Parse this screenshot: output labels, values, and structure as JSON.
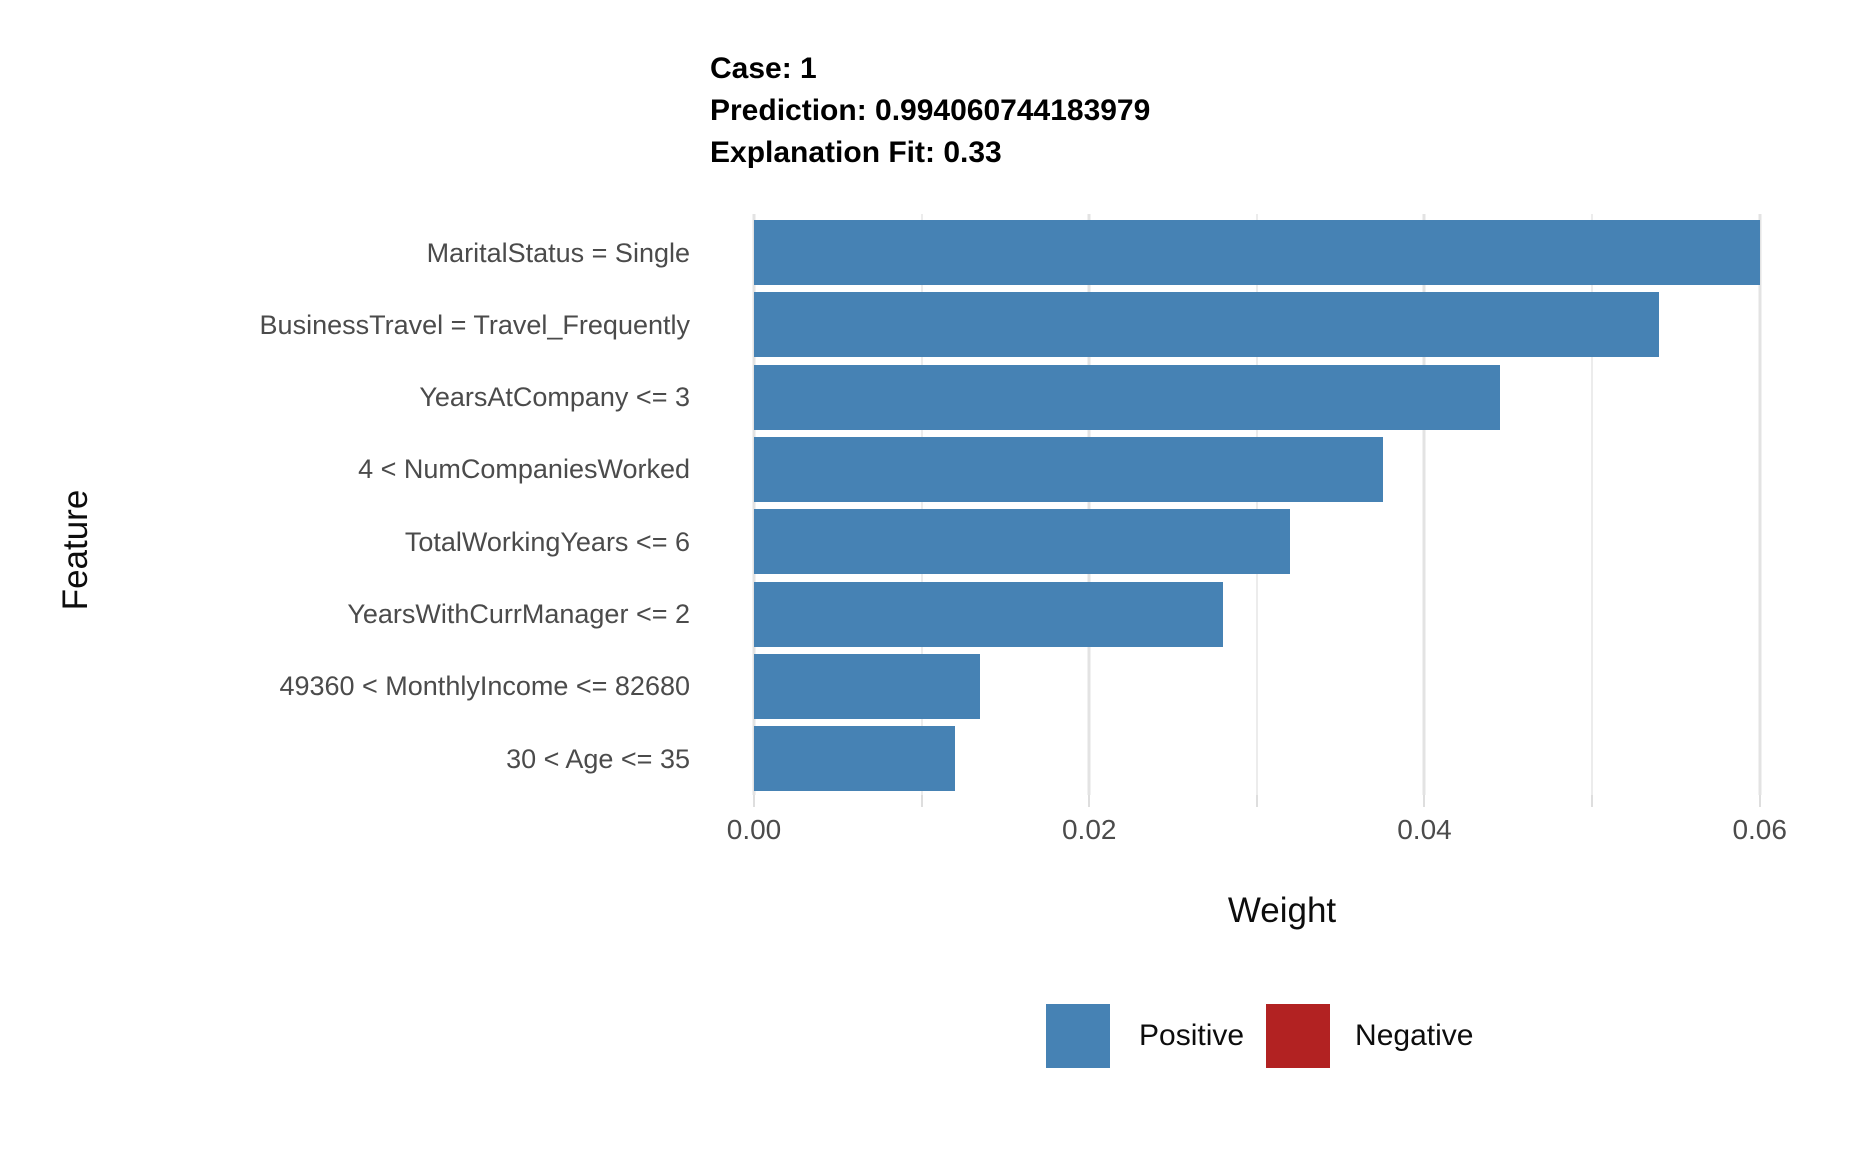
{
  "chart_data": {
    "type": "bar",
    "orientation": "horizontal",
    "title_lines": [
      "Case: 1",
      "Prediction: 0.994060744183979",
      "Explanation Fit: 0.33"
    ],
    "xlabel": "Weight",
    "ylabel": "Feature",
    "categories": [
      "MaritalStatus = Single",
      "BusinessTravel = Travel_Frequently",
      "YearsAtCompany <= 3",
      "4 < NumCompaniesWorked",
      "TotalWorkingYears <= 6",
      "YearsWithCurrManager <= 2",
      "49360 < MonthlyIncome <= 82680",
      "30 < Age <= 35"
    ],
    "values": [
      0.06,
      0.054,
      0.0445,
      0.0375,
      0.032,
      0.028,
      0.0135,
      0.012
    ],
    "bar_signs": [
      "Positive",
      "Positive",
      "Positive",
      "Positive",
      "Positive",
      "Positive",
      "Positive",
      "Positive"
    ],
    "xlim": [
      0,
      0.063
    ],
    "x_ticks": [
      0,
      0.02,
      0.04,
      0.06
    ],
    "x_tick_labels": [
      "0.00",
      "0.02",
      "0.04",
      "0.06"
    ],
    "x_minor_ticks": [
      0.01,
      0.03,
      0.05
    ],
    "grid": true,
    "legend_position": "bottom",
    "legend": [
      {
        "label": "Positive",
        "color": "#4682B4"
      },
      {
        "label": "Negative",
        "color": "#B22222"
      }
    ],
    "colors": {
      "positive": "#4682B4",
      "negative": "#B22222",
      "grid_major": "#e3e3e3",
      "grid_minor": "#ececec",
      "axis_text": "#4b4b4b",
      "title_text": "#000000",
      "background": "#ffffff"
    }
  }
}
